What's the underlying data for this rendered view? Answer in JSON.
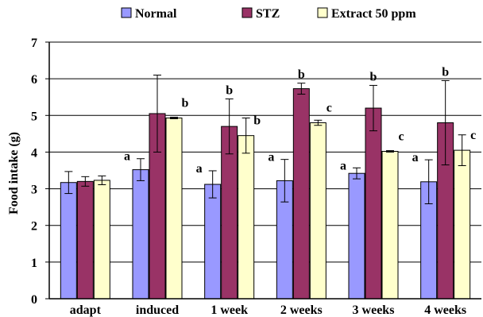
{
  "chart_data": {
    "type": "bar",
    "ylabel": "Food intake (g)",
    "ylim": [
      0,
      7
    ],
    "yticks": [
      "0",
      "1",
      "2",
      "3",
      "4",
      "5",
      "6",
      "7"
    ],
    "grid": "horizontal",
    "legend_position": "top",
    "categories": [
      "adapt",
      "induced",
      "1 week",
      "2 weeks",
      "3 weeks",
      "4 weeks"
    ],
    "series": [
      {
        "name": "Normal",
        "color": "#9999ff",
        "values": [
          3.17,
          3.52,
          3.12,
          3.22,
          3.42,
          3.19
        ],
        "errors": [
          0.3,
          0.3,
          0.37,
          0.58,
          0.15,
          0.6
        ],
        "sig": [
          "",
          "a",
          "a",
          "a",
          "a",
          "a"
        ]
      },
      {
        "name": "STZ",
        "color": "#993366",
        "values": [
          3.2,
          5.05,
          4.7,
          5.73,
          5.2,
          4.8
        ],
        "errors": [
          0.13,
          1.05,
          0.75,
          0.15,
          0.62,
          1.15
        ],
        "sig": [
          "",
          "",
          "b",
          "b",
          "b",
          "b"
        ]
      },
      {
        "name": "Extract 50 ppm",
        "color": "#ffffcc",
        "values": [
          3.23,
          4.93,
          4.45,
          4.8,
          4.02,
          4.05
        ],
        "errors": [
          0.12,
          0.02,
          0.48,
          0.07,
          0.02,
          0.42
        ],
        "sig": [
          "",
          "b",
          "b",
          "c",
          "c",
          "c"
        ]
      }
    ]
  }
}
